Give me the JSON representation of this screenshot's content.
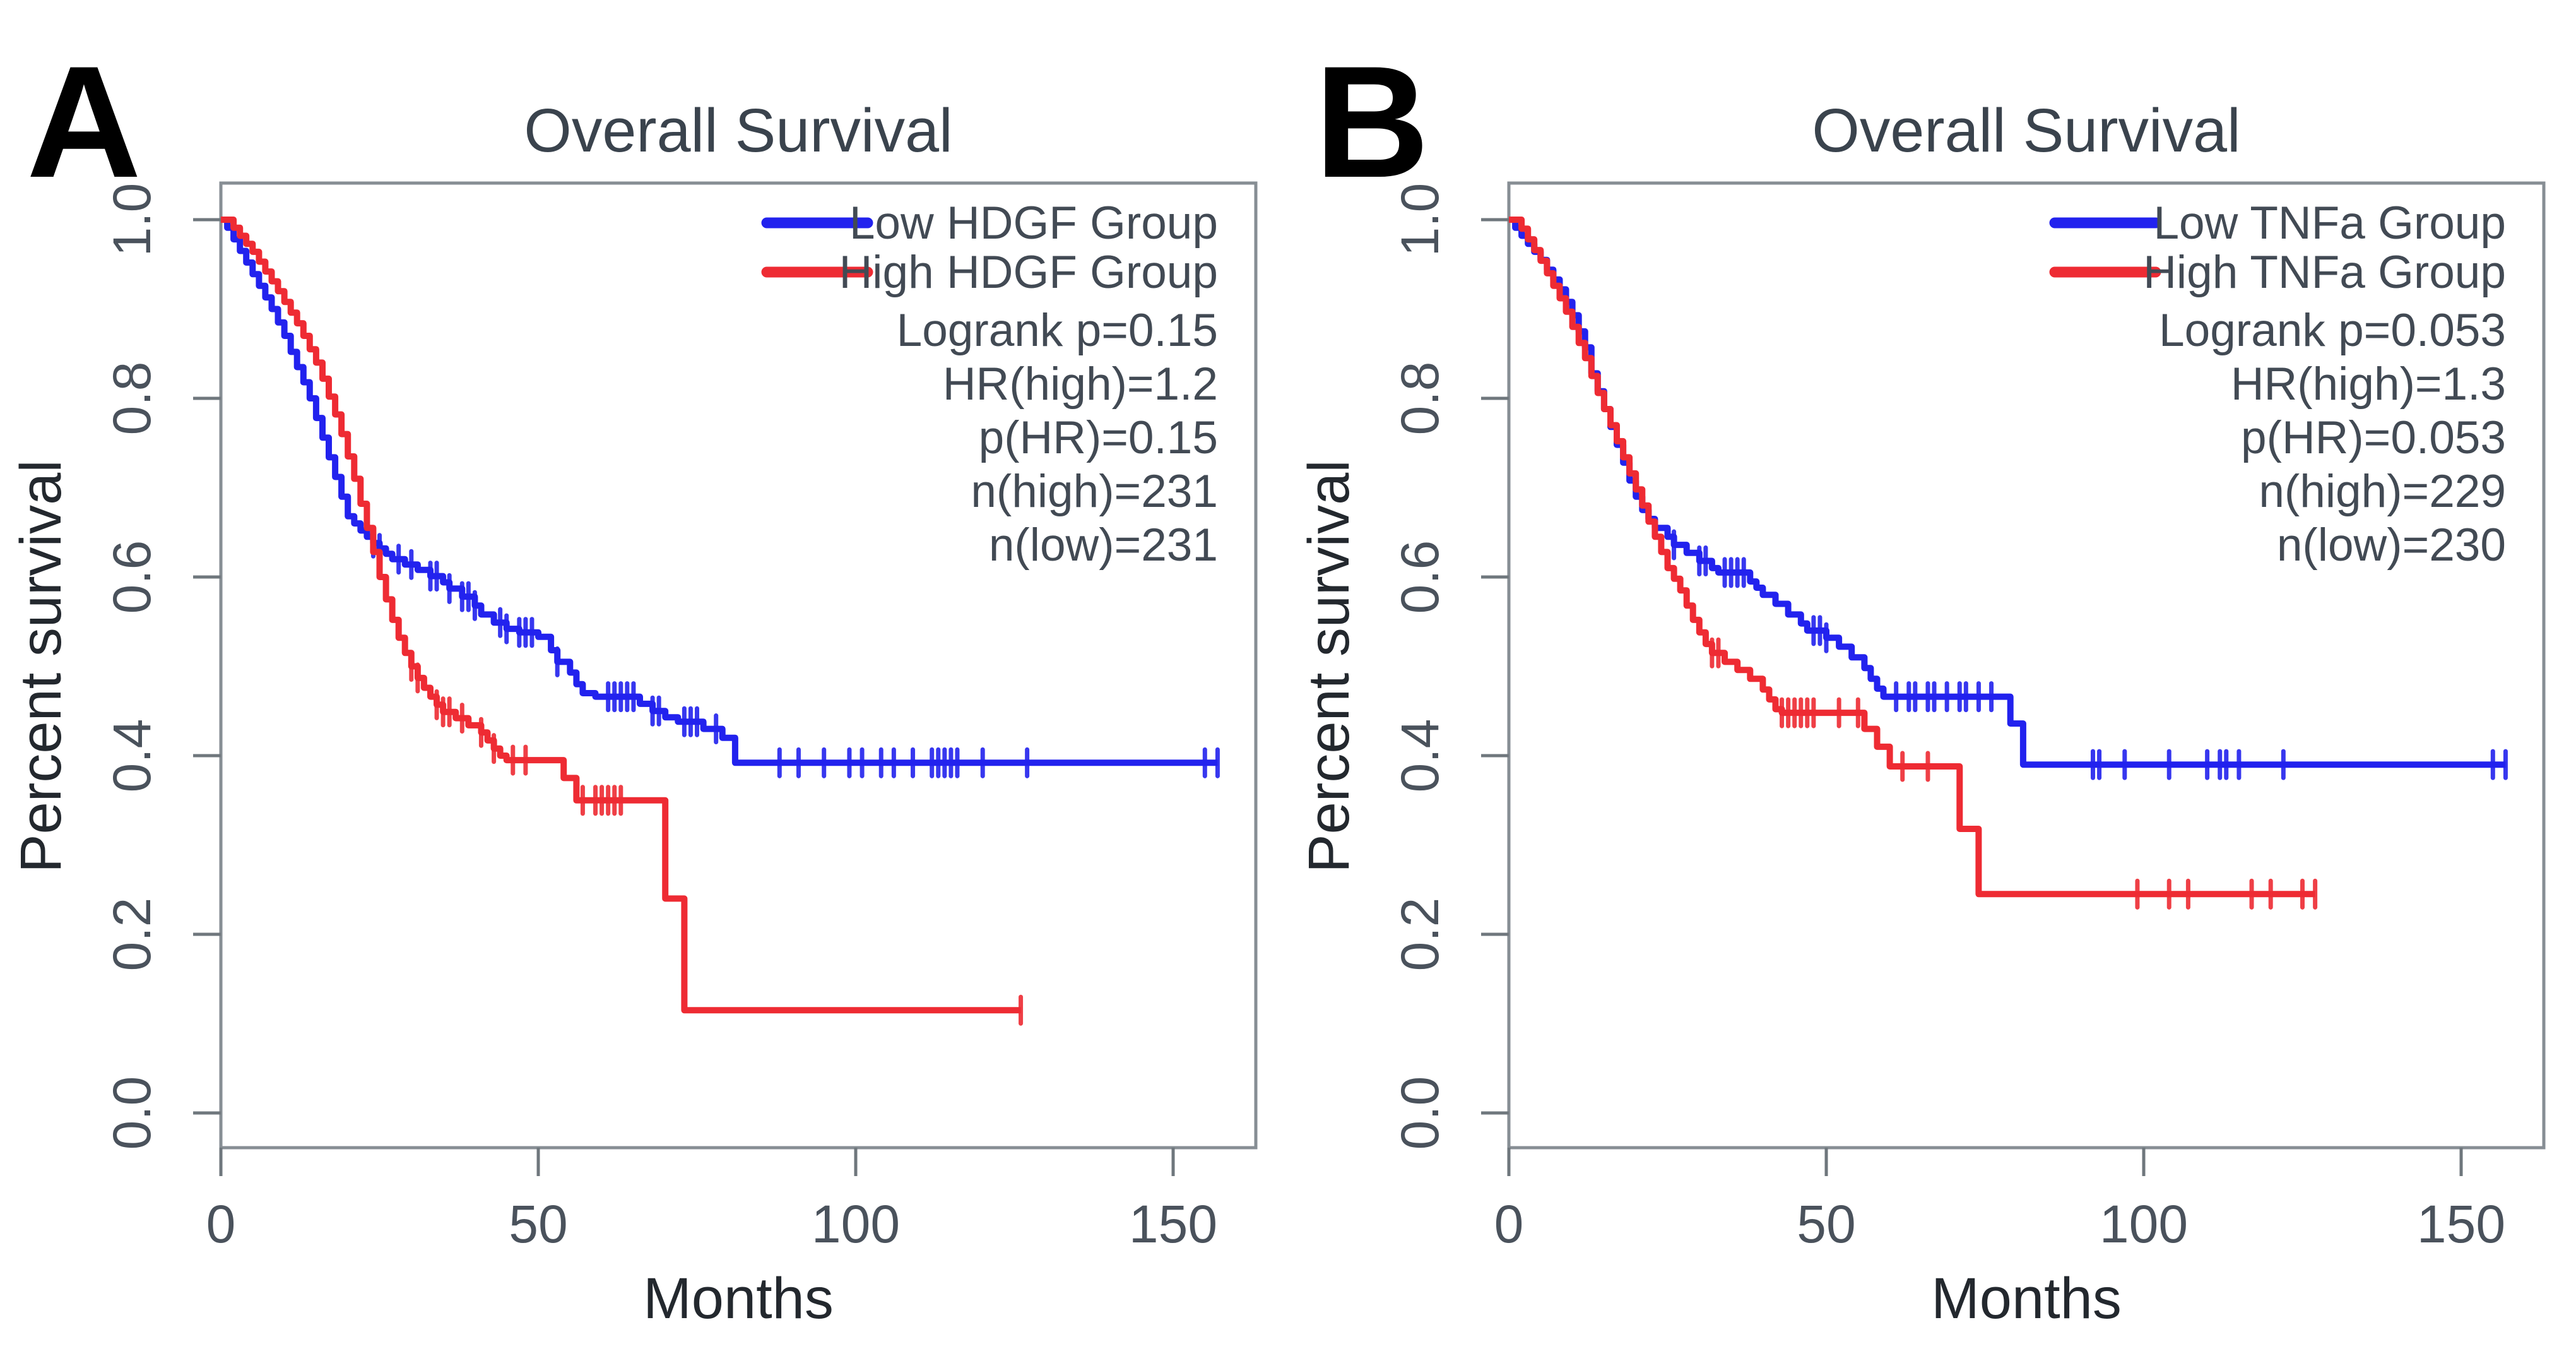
{
  "figure": {
    "background": "#ffffff",
    "text_color": "#424a54",
    "box_color": "#878e94"
  },
  "chart_data": [
    {
      "type": "line",
      "subtype": "kaplan-meier-step",
      "panel_label": "A",
      "title": "Overall Survival",
      "xlabel": "Months",
      "ylabel": "Percent survival",
      "xlim": [
        0,
        163
      ],
      "ylim": [
        0,
        1
      ],
      "grid": false,
      "legend_position": "top-right",
      "x_ticks": [
        "0",
        "50",
        "100",
        "150"
      ],
      "y_ticks": [
        "1.0",
        "0.8",
        "0.6",
        "0.4",
        "0.2",
        "0.0"
      ],
      "legend": {
        "entries": [
          {
            "label": "Low HDGF Group",
            "color": "#2222ee"
          },
          {
            "label": "High HDGF Group",
            "color": "#ee2b33"
          }
        ],
        "stats": [
          "Logrank p=0.15",
          "HR(high)=1.2",
          "p(HR)=0.15",
          "n(high)=231",
          "n(low)=231"
        ]
      },
      "series": [
        {
          "name": "Low HDGF Group",
          "color": "#2222ee",
          "steps": [
            [
              0,
              1.0
            ],
            [
              1,
              0.991
            ],
            [
              2,
              0.978
            ],
            [
              3,
              0.965
            ],
            [
              4,
              0.952
            ],
            [
              5,
              0.939
            ],
            [
              6,
              0.926
            ],
            [
              7,
              0.913
            ],
            [
              8,
              0.9
            ],
            [
              9,
              0.885
            ],
            [
              10,
              0.87
            ],
            [
              11,
              0.852
            ],
            [
              12,
              0.835
            ],
            [
              13,
              0.818
            ],
            [
              14,
              0.8
            ],
            [
              15,
              0.778
            ],
            [
              16,
              0.756
            ],
            [
              17,
              0.734
            ],
            [
              18,
              0.712
            ],
            [
              19,
              0.69
            ],
            [
              20,
              0.668
            ],
            [
              21,
              0.66
            ],
            [
              22,
              0.652
            ],
            [
              23,
              0.645
            ],
            [
              24,
              0.638
            ],
            [
              25,
              0.632
            ],
            [
              26,
              0.626
            ],
            [
              27,
              0.62
            ],
            [
              29,
              0.614
            ],
            [
              31,
              0.608
            ],
            [
              33,
              0.601
            ],
            [
              35,
              0.594
            ],
            [
              36,
              0.587
            ],
            [
              38,
              0.578
            ],
            [
              40,
              0.568
            ],
            [
              41,
              0.558
            ],
            [
              43,
              0.549
            ],
            [
              45,
              0.542
            ],
            [
              47,
              0.538
            ],
            [
              50,
              0.533
            ],
            [
              52,
              0.518
            ],
            [
              53,
              0.505
            ],
            [
              55,
              0.493
            ],
            [
              56,
              0.48
            ],
            [
              57,
              0.47
            ],
            [
              59,
              0.466
            ],
            [
              66,
              0.458
            ],
            [
              68,
              0.45
            ],
            [
              70,
              0.443
            ],
            [
              72,
              0.438
            ],
            [
              76,
              0.43
            ],
            [
              79,
              0.42
            ],
            [
              81,
              0.392
            ],
            [
              157,
              0.392
            ]
          ],
          "censor_times": [
            24,
            25,
            28,
            30,
            33,
            34,
            36,
            38,
            39,
            40,
            44,
            45,
            47,
            48,
            49,
            53,
            61,
            62,
            63,
            64,
            65,
            68,
            69,
            73,
            74,
            75,
            78,
            88,
            91,
            95,
            99,
            101,
            104,
            106,
            109,
            112,
            113,
            114,
            115,
            116,
            120,
            127,
            155,
            157
          ]
        },
        {
          "name": "High HDGF Group",
          "color": "#ee2b33",
          "steps": [
            [
              0,
              1.0
            ],
            [
              2,
              0.991
            ],
            [
              3,
              0.982
            ],
            [
              4,
              0.973
            ],
            [
              5,
              0.964
            ],
            [
              6,
              0.953
            ],
            [
              7,
              0.942
            ],
            [
              8,
              0.931
            ],
            [
              9,
              0.92
            ],
            [
              10,
              0.908
            ],
            [
              11,
              0.896
            ],
            [
              12,
              0.884
            ],
            [
              13,
              0.87
            ],
            [
              14,
              0.855
            ],
            [
              15,
              0.84
            ],
            [
              16,
              0.822
            ],
            [
              17,
              0.802
            ],
            [
              18,
              0.782
            ],
            [
              19,
              0.76
            ],
            [
              20,
              0.735
            ],
            [
              21,
              0.71
            ],
            [
              22,
              0.682
            ],
            [
              23,
              0.655
            ],
            [
              24,
              0.628
            ],
            [
              25,
              0.6
            ],
            [
              26,
              0.575
            ],
            [
              27,
              0.552
            ],
            [
              28,
              0.532
            ],
            [
              29,
              0.515
            ],
            [
              30,
              0.5
            ],
            [
              31,
              0.487
            ],
            [
              32,
              0.476
            ],
            [
              33,
              0.466
            ],
            [
              34,
              0.457
            ],
            [
              35,
              0.449
            ],
            [
              37,
              0.442
            ],
            [
              39,
              0.434
            ],
            [
              41,
              0.426
            ],
            [
              42,
              0.417
            ],
            [
              43,
              0.408
            ],
            [
              44,
              0.4
            ],
            [
              45,
              0.395
            ],
            [
              54,
              0.375
            ],
            [
              56,
              0.35
            ],
            [
              70,
              0.24
            ],
            [
              73,
              0.115
            ],
            [
              126,
              0.115
            ]
          ],
          "censor_times": [
            30,
            31,
            34,
            35,
            36,
            38,
            41,
            43,
            46,
            48,
            57,
            59,
            60,
            61,
            62,
            63,
            126
          ]
        }
      ]
    },
    {
      "type": "line",
      "subtype": "kaplan-meier-step",
      "panel_label": "B",
      "title": "Overall Survival",
      "xlabel": "Months",
      "ylabel": "Percent survival",
      "xlim": [
        0,
        163
      ],
      "ylim": [
        0,
        1
      ],
      "grid": false,
      "legend_position": "top-right",
      "x_ticks": [
        "0",
        "50",
        "100",
        "150"
      ],
      "y_ticks": [
        "1.0",
        "0.8",
        "0.6",
        "0.4",
        "0.2",
        "0.0"
      ],
      "legend": {
        "entries": [
          {
            "label": "Low TNFa Group",
            "color": "#2222ee"
          },
          {
            "label": "High TNFa Group",
            "color": "#ee2b33"
          }
        ],
        "stats": [
          "Logrank p=0.053",
          "HR(high)=1.3",
          "p(HR)=0.053",
          "n(high)=229",
          "n(low)=230"
        ]
      },
      "series": [
        {
          "name": "Low TNFa Group",
          "color": "#2222ee",
          "steps": [
            [
              0,
              1.0
            ],
            [
              1,
              0.991
            ],
            [
              2,
              0.982
            ],
            [
              3,
              0.973
            ],
            [
              4,
              0.964
            ],
            [
              5,
              0.955
            ],
            [
              6,
              0.944
            ],
            [
              7,
              0.933
            ],
            [
              8,
              0.922
            ],
            [
              9,
              0.908
            ],
            [
              10,
              0.893
            ],
            [
              11,
              0.875
            ],
            [
              12,
              0.857
            ],
            [
              13,
              0.828
            ],
            [
              14,
              0.808
            ],
            [
              15,
              0.788
            ],
            [
              16,
              0.768
            ],
            [
              17,
              0.748
            ],
            [
              18,
              0.728
            ],
            [
              19,
              0.708
            ],
            [
              20,
              0.69
            ],
            [
              21,
              0.675
            ],
            [
              22,
              0.665
            ],
            [
              23,
              0.655
            ],
            [
              25,
              0.645
            ],
            [
              26,
              0.636
            ],
            [
              28,
              0.627
            ],
            [
              30,
              0.618
            ],
            [
              32,
              0.61
            ],
            [
              33,
              0.605
            ],
            [
              38,
              0.595
            ],
            [
              39,
              0.588
            ],
            [
              40,
              0.58
            ],
            [
              42,
              0.57
            ],
            [
              44,
              0.558
            ],
            [
              46,
              0.548
            ],
            [
              47,
              0.54
            ],
            [
              50,
              0.532
            ],
            [
              52,
              0.522
            ],
            [
              54,
              0.51
            ],
            [
              56,
              0.498
            ],
            [
              57,
              0.486
            ],
            [
              58,
              0.475
            ],
            [
              59,
              0.466
            ],
            [
              79,
              0.436
            ],
            [
              81,
              0.39
            ],
            [
              157,
              0.39
            ]
          ],
          "censor_times": [
            26,
            30,
            31,
            34,
            35,
            36,
            37,
            48,
            49,
            50,
            61,
            63,
            64,
            66,
            67,
            69,
            71,
            72,
            74,
            76,
            92,
            93,
            97,
            104,
            110,
            112,
            113,
            115,
            122,
            155,
            157
          ]
        },
        {
          "name": "High TNFa Group",
          "color": "#ee2b33",
          "steps": [
            [
              0,
              1.0
            ],
            [
              2,
              0.99
            ],
            [
              3,
              0.978
            ],
            [
              4,
              0.966
            ],
            [
              5,
              0.954
            ],
            [
              6,
              0.94
            ],
            [
              7,
              0.926
            ],
            [
              8,
              0.912
            ],
            [
              9,
              0.897
            ],
            [
              10,
              0.88
            ],
            [
              11,
              0.862
            ],
            [
              12,
              0.845
            ],
            [
              13,
              0.825
            ],
            [
              14,
              0.806
            ],
            [
              15,
              0.788
            ],
            [
              16,
              0.77
            ],
            [
              17,
              0.752
            ],
            [
              18,
              0.734
            ],
            [
              19,
              0.716
            ],
            [
              20,
              0.698
            ],
            [
              21,
              0.68
            ],
            [
              22,
              0.662
            ],
            [
              23,
              0.645
            ],
            [
              24,
              0.628
            ],
            [
              25,
              0.61
            ],
            [
              26,
              0.598
            ],
            [
              27,
              0.585
            ],
            [
              28,
              0.568
            ],
            [
              29,
              0.552
            ],
            [
              30,
              0.538
            ],
            [
              31,
              0.525
            ],
            [
              32,
              0.515
            ],
            [
              34,
              0.505
            ],
            [
              36,
              0.496
            ],
            [
              38,
              0.486
            ],
            [
              40,
              0.474
            ],
            [
              41,
              0.463
            ],
            [
              42,
              0.452
            ],
            [
              43,
              0.448
            ],
            [
              56,
              0.43
            ],
            [
              58,
              0.41
            ],
            [
              60,
              0.388
            ],
            [
              71,
              0.318
            ],
            [
              74,
              0.245
            ],
            [
              127,
              0.245
            ]
          ],
          "censor_times": [
            32,
            33,
            43,
            44,
            45,
            46,
            47,
            48,
            52,
            55,
            62,
            66,
            99,
            104,
            107,
            117,
            120,
            125,
            127
          ]
        }
      ]
    }
  ]
}
